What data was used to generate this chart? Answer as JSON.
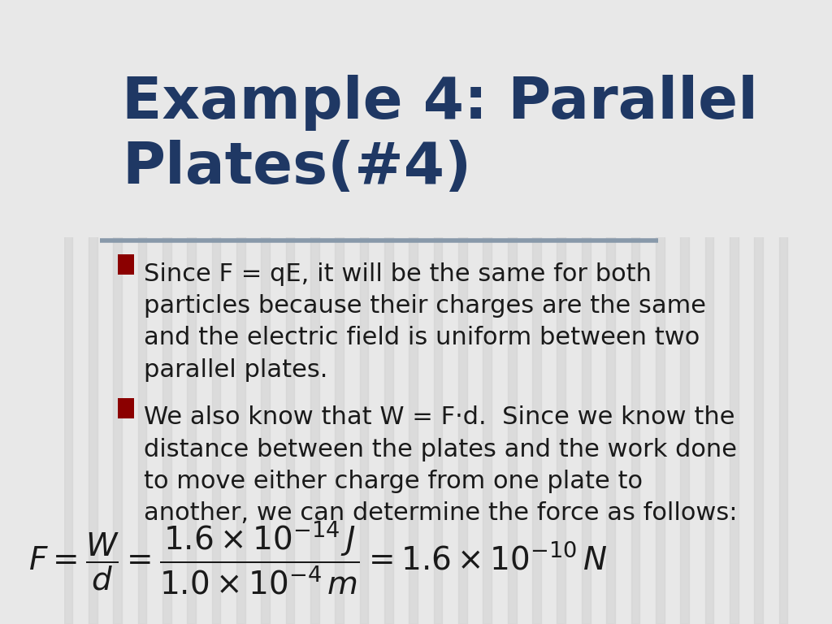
{
  "title": "Example 4: Parallel\nPlates(#4)",
  "title_color": "#1F3864",
  "title_fontsize": 52,
  "bg_color": "#E8E8E8",
  "stripe_color": "#D0D0D0",
  "divider_color": "#8899AA",
  "bullet_color": "#8B0000",
  "text_color": "#1a1a1a",
  "body_fontsize": 22,
  "bullet1": "Since F = qE, it will be the same for both\nparticles because their charges are the same\nand the electric field is uniform between two\nparallel plates.",
  "bullet2": "We also know that W = F·d.  Since we know the\ndistance between the plates and the work done\nto move either charge from one plate to\nanother, we can determine the force as follows:",
  "formula": "F = \\frac{W}{d} = \\frac{1.6\\times10^{-14}\\,J}{1.0\\times10^{-4}\\,m} = 1.6\\times10^{-10}\\,N"
}
